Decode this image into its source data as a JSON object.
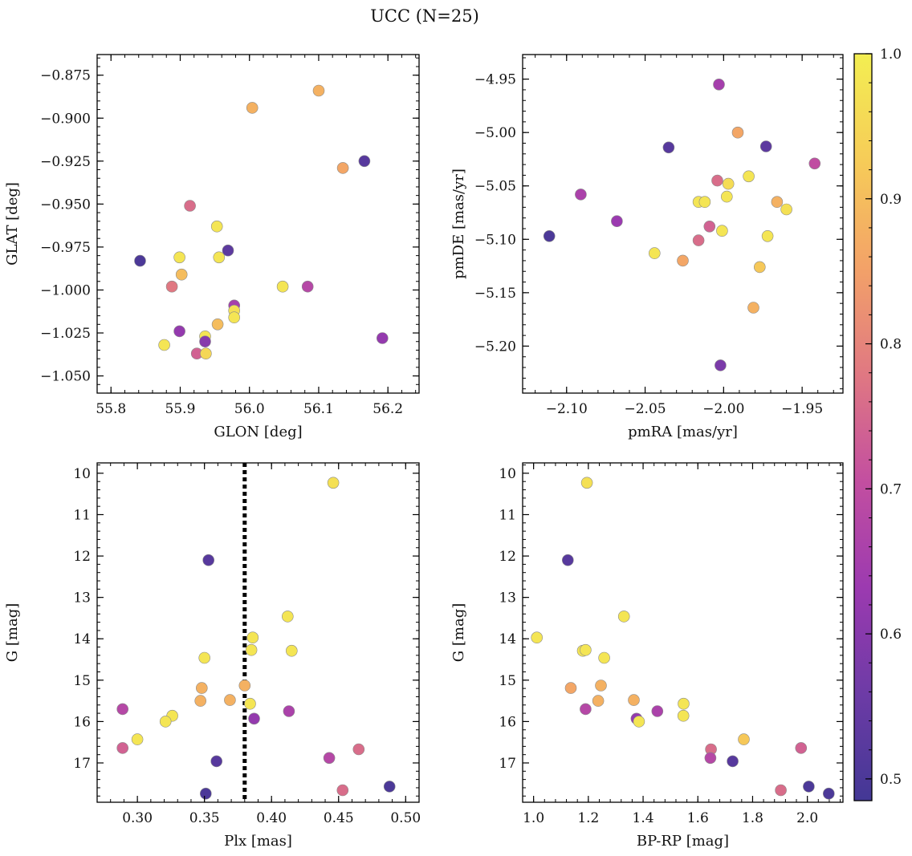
{
  "title": "UCC (N=25)",
  "chart_data": [
    {
      "type": "scatter",
      "xlabel": "GLON [deg]",
      "ylabel": "GLAT [deg]",
      "xlim": [
        55.78,
        56.245
      ],
      "ylim": [
        -1.06,
        -0.863
      ],
      "y_inverted": false,
      "x_ticks": [
        55.8,
        55.9,
        56.0,
        56.1,
        56.2
      ],
      "x_tick_labels": [
        "55.8",
        "55.9",
        "56.0",
        "56.1",
        "56.2"
      ],
      "y_ticks": [
        -0.875,
        -0.9,
        -0.925,
        -0.95,
        -0.975,
        -1.0,
        -1.025,
        -1.05
      ],
      "y_tick_labels": [
        "−0.875",
        "−0.900",
        "−0.925",
        "−0.950",
        "−0.975",
        "−1.000",
        "−1.025",
        "−1.050"
      ],
      "points": [
        {
          "x": 56.004,
          "y": -0.894,
          "c": 0.88
        },
        {
          "x": 56.1,
          "y": -0.884,
          "c": 0.88
        },
        {
          "x": 56.135,
          "y": -0.929,
          "c": 0.86
        },
        {
          "x": 56.166,
          "y": -0.925,
          "c": 0.52
        },
        {
          "x": 55.842,
          "y": -0.983,
          "c": 0.5
        },
        {
          "x": 55.914,
          "y": -0.951,
          "c": 0.76
        },
        {
          "x": 55.953,
          "y": -0.963,
          "c": 0.98
        },
        {
          "x": 55.899,
          "y": -0.981,
          "c": 0.98
        },
        {
          "x": 55.969,
          "y": -0.977,
          "c": 0.53
        },
        {
          "x": 55.956,
          "y": -0.981,
          "c": 0.98
        },
        {
          "x": 55.902,
          "y": -0.991,
          "c": 0.9
        },
        {
          "x": 55.888,
          "y": -0.998,
          "c": 0.78
        },
        {
          "x": 56.048,
          "y": -0.998,
          "c": 0.98
        },
        {
          "x": 56.084,
          "y": -0.998,
          "c": 0.68
        },
        {
          "x": 55.978,
          "y": -1.009,
          "c": 0.65
        },
        {
          "x": 55.978,
          "y": -1.012,
          "c": 0.97
        },
        {
          "x": 55.978,
          "y": -1.016,
          "c": 0.98
        },
        {
          "x": 55.954,
          "y": -1.02,
          "c": 0.9
        },
        {
          "x": 55.899,
          "y": -1.024,
          "c": 0.62
        },
        {
          "x": 55.936,
          "y": -1.027,
          "c": 0.98
        },
        {
          "x": 55.936,
          "y": -1.03,
          "c": 0.6
        },
        {
          "x": 56.192,
          "y": -1.028,
          "c": 0.62
        },
        {
          "x": 55.877,
          "y": -1.032,
          "c": 0.98
        },
        {
          "x": 55.924,
          "y": -1.037,
          "c": 0.74
        },
        {
          "x": 55.937,
          "y": -1.037,
          "c": 0.95
        }
      ]
    },
    {
      "type": "scatter",
      "xlabel": "pmRA [mas/yr]",
      "ylabel": "pmDE [mas/yr]",
      "xlim": [
        -2.128,
        -1.924
      ],
      "ylim": [
        -5.244,
        -4.927
      ],
      "y_inverted": false,
      "x_ticks": [
        -2.1,
        -2.05,
        -2.0,
        -1.95
      ],
      "x_tick_labels": [
        "−2.10",
        "−2.05",
        "−2.00",
        "−1.95"
      ],
      "y_ticks": [
        -4.95,
        -5.0,
        -5.05,
        -5.1,
        -5.15,
        -5.2
      ],
      "y_tick_labels": [
        "−4.95",
        "−5.00",
        "−5.05",
        "−5.10",
        "−5.15",
        "−5.20"
      ],
      "points": [
        {
          "x": -2.003,
          "y": -4.955,
          "c": 0.65
        },
        {
          "x": -1.991,
          "y": -5.0,
          "c": 0.86
        },
        {
          "x": -2.035,
          "y": -5.014,
          "c": 0.52
        },
        {
          "x": -1.973,
          "y": -5.013,
          "c": 0.53
        },
        {
          "x": -1.942,
          "y": -5.029,
          "c": 0.7
        },
        {
          "x": -1.984,
          "y": -5.041,
          "c": 0.98
        },
        {
          "x": -2.004,
          "y": -5.045,
          "c": 0.76
        },
        {
          "x": -1.997,
          "y": -5.048,
          "c": 0.96
        },
        {
          "x": -2.091,
          "y": -5.058,
          "c": 0.66
        },
        {
          "x": -1.998,
          "y": -5.06,
          "c": 0.98
        },
        {
          "x": -2.016,
          "y": -5.065,
          "c": 0.98
        },
        {
          "x": -2.012,
          "y": -5.065,
          "c": 0.98
        },
        {
          "x": -1.966,
          "y": -5.065,
          "c": 0.88
        },
        {
          "x": -1.96,
          "y": -5.072,
          "c": 0.97
        },
        {
          "x": -2.068,
          "y": -5.083,
          "c": 0.63
        },
        {
          "x": -2.009,
          "y": -5.088,
          "c": 0.74
        },
        {
          "x": -2.001,
          "y": -5.092,
          "c": 0.98
        },
        {
          "x": -2.111,
          "y": -5.097,
          "c": 0.5
        },
        {
          "x": -1.972,
          "y": -5.097,
          "c": 0.98
        },
        {
          "x": -2.016,
          "y": -5.101,
          "c": 0.76
        },
        {
          "x": -2.044,
          "y": -5.113,
          "c": 0.98
        },
        {
          "x": -2.026,
          "y": -5.12,
          "c": 0.86
        },
        {
          "x": -1.977,
          "y": -5.126,
          "c": 0.92
        },
        {
          "x": -1.981,
          "y": -5.164,
          "c": 0.88
        },
        {
          "x": -2.002,
          "y": -5.218,
          "c": 0.58
        }
      ]
    },
    {
      "type": "scatter",
      "xlabel": "Plx [mas]",
      "ylabel": "G [mag]",
      "xlim": [
        0.27,
        0.51
      ],
      "ylim": [
        9.75,
        17.95
      ],
      "y_inverted": true,
      "x_ticks": [
        0.3,
        0.35,
        0.4,
        0.45,
        0.5
      ],
      "x_tick_labels": [
        "0.30",
        "0.35",
        "0.40",
        "0.45",
        "0.50"
      ],
      "y_ticks": [
        10,
        11,
        12,
        13,
        14,
        15,
        16,
        17
      ],
      "y_tick_labels": [
        "10",
        "11",
        "12",
        "13",
        "14",
        "15",
        "16",
        "17"
      ],
      "reference_line_x": 0.38,
      "points": [
        {
          "x": 0.446,
          "y": 10.23,
          "c": 0.97
        },
        {
          "x": 0.353,
          "y": 12.1,
          "c": 0.52
        },
        {
          "x": 0.412,
          "y": 13.46,
          "c": 0.98
        },
        {
          "x": 0.386,
          "y": 13.97,
          "c": 0.98
        },
        {
          "x": 0.385,
          "y": 14.27,
          "c": 0.98
        },
        {
          "x": 0.415,
          "y": 14.29,
          "c": 0.98
        },
        {
          "x": 0.35,
          "y": 14.46,
          "c": 0.98
        },
        {
          "x": 0.38,
          "y": 15.13,
          "c": 0.88
        },
        {
          "x": 0.348,
          "y": 15.19,
          "c": 0.88
        },
        {
          "x": 0.347,
          "y": 15.5,
          "c": 0.88
        },
        {
          "x": 0.369,
          "y": 15.48,
          "c": 0.88
        },
        {
          "x": 0.384,
          "y": 15.57,
          "c": 0.98
        },
        {
          "x": 0.289,
          "y": 15.7,
          "c": 0.68
        },
        {
          "x": 0.413,
          "y": 15.75,
          "c": 0.66
        },
        {
          "x": 0.326,
          "y": 15.86,
          "c": 0.98
        },
        {
          "x": 0.387,
          "y": 15.93,
          "c": 0.62
        },
        {
          "x": 0.321,
          "y": 16.0,
          "c": 0.98
        },
        {
          "x": 0.3,
          "y": 16.43,
          "c": 0.98
        },
        {
          "x": 0.289,
          "y": 16.64,
          "c": 0.74
        },
        {
          "x": 0.465,
          "y": 16.67,
          "c": 0.76
        },
        {
          "x": 0.443,
          "y": 16.88,
          "c": 0.68
        },
        {
          "x": 0.359,
          "y": 16.96,
          "c": 0.52
        },
        {
          "x": 0.488,
          "y": 17.57,
          "c": 0.5
        },
        {
          "x": 0.453,
          "y": 17.66,
          "c": 0.76
        },
        {
          "x": 0.351,
          "y": 17.74,
          "c": 0.5
        }
      ]
    },
    {
      "type": "scatter",
      "xlabel": "BP-RP [mag]",
      "ylabel": "G [mag]",
      "xlim": [
        0.96,
        2.13
      ],
      "ylim": [
        9.75,
        17.95
      ],
      "y_inverted": true,
      "x_ticks": [
        1.0,
        1.2,
        1.4,
        1.6,
        1.8,
        2.0
      ],
      "x_tick_labels": [
        "1.0",
        "1.2",
        "1.4",
        "1.6",
        "1.8",
        "2.0"
      ],
      "y_ticks": [
        10,
        11,
        12,
        13,
        14,
        15,
        16,
        17
      ],
      "y_tick_labels": [
        "10",
        "11",
        "12",
        "13",
        "14",
        "15",
        "16",
        "17"
      ],
      "points": [
        {
          "x": 1.195,
          "y": 10.23,
          "c": 0.97
        },
        {
          "x": 1.125,
          "y": 12.1,
          "c": 0.52
        },
        {
          "x": 1.33,
          "y": 13.46,
          "c": 0.98
        },
        {
          "x": 1.012,
          "y": 13.97,
          "c": 0.98
        },
        {
          "x": 1.18,
          "y": 14.29,
          "c": 0.98
        },
        {
          "x": 1.19,
          "y": 14.27,
          "c": 0.98
        },
        {
          "x": 1.258,
          "y": 14.46,
          "c": 0.98
        },
        {
          "x": 1.136,
          "y": 15.19,
          "c": 0.86
        },
        {
          "x": 1.246,
          "y": 15.13,
          "c": 0.88
        },
        {
          "x": 1.236,
          "y": 15.5,
          "c": 0.88
        },
        {
          "x": 1.366,
          "y": 15.48,
          "c": 0.88
        },
        {
          "x": 1.548,
          "y": 15.57,
          "c": 0.98
        },
        {
          "x": 1.19,
          "y": 15.7,
          "c": 0.68
        },
        {
          "x": 1.452,
          "y": 15.75,
          "c": 0.66
        },
        {
          "x": 1.547,
          "y": 15.86,
          "c": 0.98
        },
        {
          "x": 1.376,
          "y": 15.93,
          "c": 0.62
        },
        {
          "x": 1.385,
          "y": 16.0,
          "c": 0.98
        },
        {
          "x": 1.768,
          "y": 16.43,
          "c": 0.92
        },
        {
          "x": 1.648,
          "y": 16.67,
          "c": 0.76
        },
        {
          "x": 1.977,
          "y": 16.64,
          "c": 0.74
        },
        {
          "x": 1.646,
          "y": 16.88,
          "c": 0.68
        },
        {
          "x": 1.727,
          "y": 16.96,
          "c": 0.52
        },
        {
          "x": 2.005,
          "y": 17.57,
          "c": 0.5
        },
        {
          "x": 1.903,
          "y": 17.66,
          "c": 0.76
        },
        {
          "x": 2.078,
          "y": 17.74,
          "c": 0.5
        }
      ]
    }
  ],
  "colorbar": {
    "colormap": "plasma",
    "vmin": 0.485,
    "vmax": 1.0,
    "ticks": [
      0.5,
      0.6,
      0.7,
      0.8,
      0.9,
      1.0
    ],
    "tick_labels": [
      "0.5",
      "0.6",
      "0.7",
      "0.8",
      "0.9",
      "1.0"
    ],
    "colors": [
      "#433895",
      "#6d3ba6",
      "#9c3ab0",
      "#c34fa0",
      "#e07882",
      "#f3a268",
      "#f6cc58",
      "#f3ee52"
    ]
  },
  "style": {
    "reference_line_color": "#000000",
    "marker_edge_color": "#8a8a8a"
  }
}
